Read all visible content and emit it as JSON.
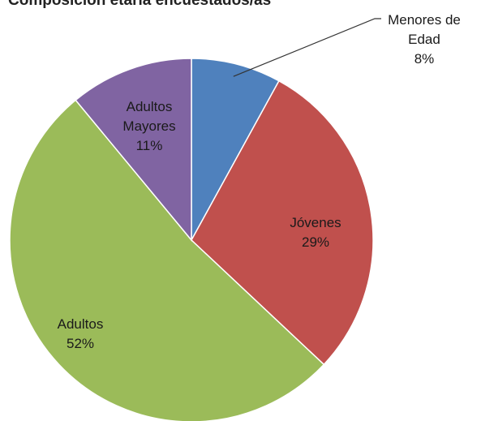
{
  "chart_data": {
    "type": "pie",
    "title": "Composición etaria encuestados/as",
    "start_angle_deg": 0,
    "direction": "clockwise",
    "slices": [
      {
        "name": "Menores de Edad",
        "label_lines": [
          "Menores de",
          "Edad",
          "8%"
        ],
        "value": 8,
        "percent_label": "8%",
        "color": "#4f81bd"
      },
      {
        "name": "Jóvenes",
        "label_lines": [
          "Jóvenes",
          "29%"
        ],
        "value": 29,
        "percent_label": "29%",
        "color": "#c0504d"
      },
      {
        "name": "Adultos",
        "label_lines": [
          "Adultos",
          "52%"
        ],
        "value": 52,
        "percent_label": "52%",
        "color": "#9bbb59"
      },
      {
        "name": "Adultos Mayores",
        "label_lines": [
          "Adultos",
          "Mayores",
          "11%"
        ],
        "value": 11,
        "percent_label": "11%",
        "color": "#8064a2"
      }
    ]
  }
}
